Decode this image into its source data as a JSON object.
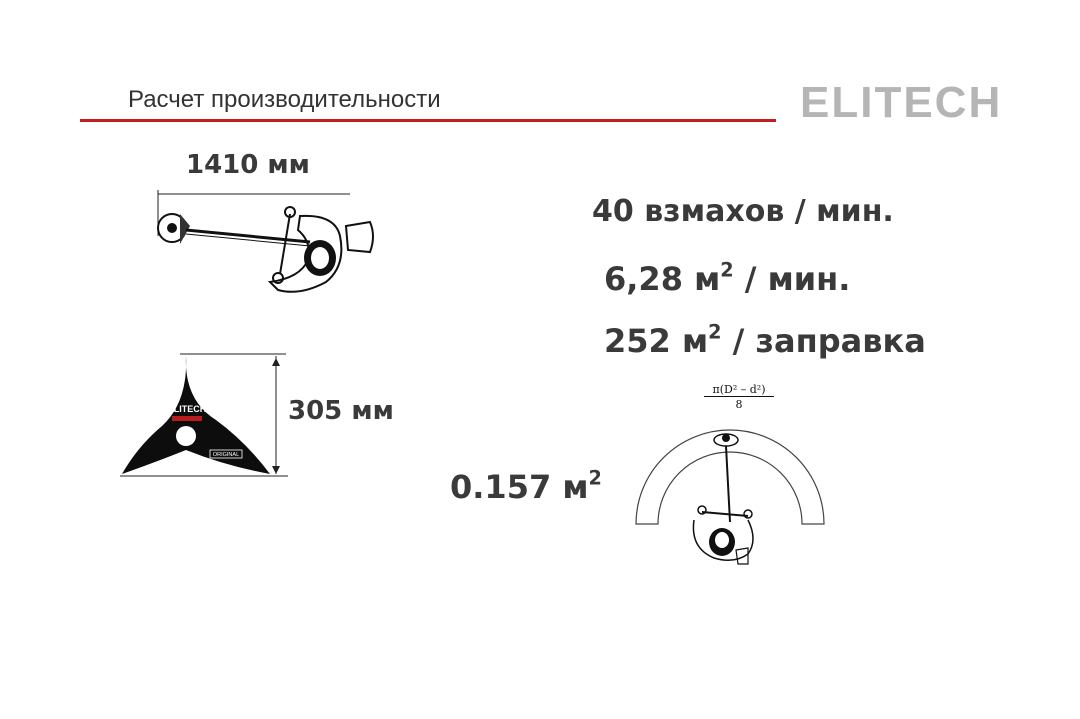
{
  "header": {
    "title": "Расчет производительности",
    "logo_text": "ELITECH",
    "accent_color": "#c21e1e"
  },
  "trimmer": {
    "width_label": "1410 мм"
  },
  "blade": {
    "height_label": "305 мм",
    "brand": "ELITECH",
    "badge": "ORIGINAL"
  },
  "stats": {
    "swings_text": "40 взмахов / мин.",
    "rate_value": "6,28 м",
    "rate_unit": " / мин.",
    "tank_value": "252 м",
    "tank_unit": " / заправка",
    "swath_value": "0.157 м",
    "exponent": "2"
  },
  "formula": {
    "numerator": "π(D² – d²)",
    "denominator": "8"
  }
}
